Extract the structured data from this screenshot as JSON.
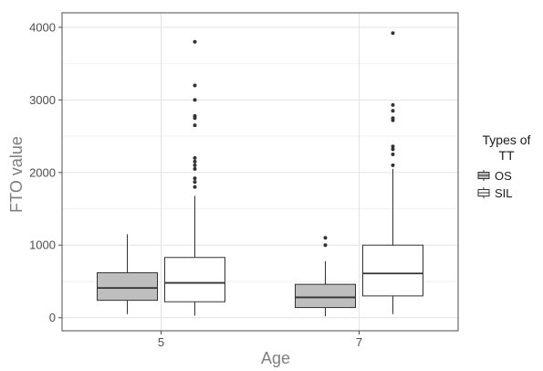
{
  "chart_data": {
    "type": "boxplot",
    "xlabel": "Age",
    "ylabel": "FTO value",
    "categories": [
      "5",
      "7"
    ],
    "ylim": [
      -180,
      4200
    ],
    "yticks": [
      0,
      1000,
      2000,
      3000,
      4000
    ],
    "grid": true,
    "legend": {
      "title": "Types of\nTT",
      "placement": "right",
      "entries": [
        {
          "name": "OS",
          "fill": "#bebebe"
        },
        {
          "name": "SIL",
          "fill": "#ffffff"
        }
      ]
    },
    "series": [
      {
        "name": "OS",
        "fill": "#bebebe",
        "boxes": [
          {
            "category": "5",
            "whisker_low": 50,
            "q1": 240,
            "median": 410,
            "q3": 620,
            "whisker_high": 1150,
            "outliers": []
          },
          {
            "category": "7",
            "whisker_low": 20,
            "q1": 140,
            "median": 280,
            "q3": 460,
            "whisker_high": 780,
            "outliers": [
              1000,
              1100
            ]
          }
        ]
      },
      {
        "name": "SIL",
        "fill": "#ffffff",
        "boxes": [
          {
            "category": "5",
            "whisker_low": 30,
            "q1": 220,
            "median": 480,
            "q3": 830,
            "whisker_high": 1680,
            "outliers": [
              1800,
              1870,
              1920,
              2050,
              2100,
              2150,
              2200,
              2650,
              2750,
              2780,
              3000,
              3200,
              3800
            ]
          },
          {
            "category": "7",
            "whisker_low": 50,
            "q1": 300,
            "median": 610,
            "q3": 1000,
            "whisker_high": 2050,
            "outliers": [
              2100,
              2250,
              2320,
              2360,
              2720,
              2750,
              2850,
              2930,
              3920
            ]
          }
        ]
      }
    ]
  }
}
